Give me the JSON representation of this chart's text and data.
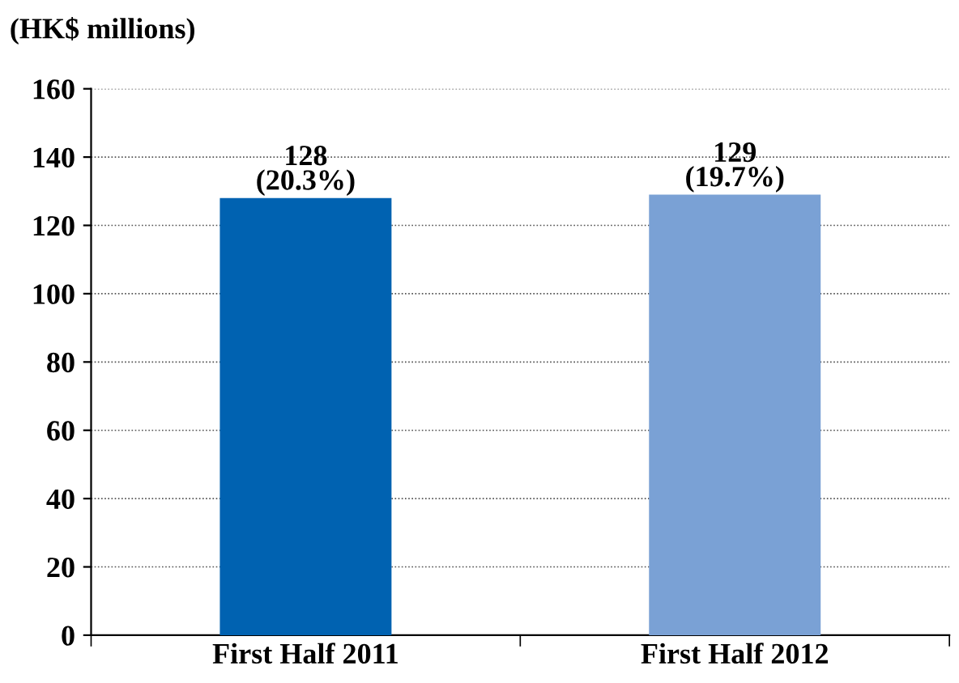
{
  "chart_data": {
    "type": "bar",
    "ylabel": "(HK$ millions)",
    "categories": [
      "First Half 2011",
      "First Half 2012"
    ],
    "values": [
      128,
      129
    ],
    "colors": [
      "#0062b1",
      "#7aa1d5"
    ],
    "value_labels": [
      "128\n(20.3%)",
      "129\n(19.7%)"
    ],
    "ylim": [
      0,
      160
    ],
    "yticks": [
      0,
      20,
      40,
      60,
      80,
      100,
      120,
      140,
      160
    ],
    "grid": "y",
    "legend": false
  }
}
